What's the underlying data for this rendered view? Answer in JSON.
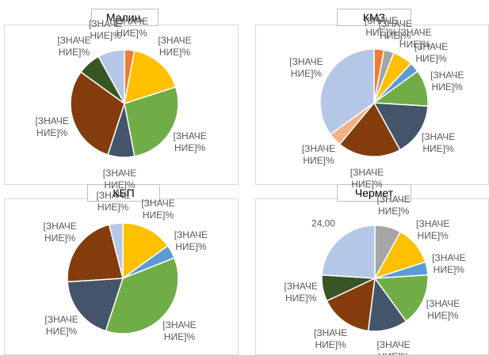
{
  "chart_data": [
    {
      "type": "pie",
      "title": "Малин.",
      "categories": [
        null,
        null,
        null,
        null,
        null,
        null,
        null
      ],
      "values": [
        3,
        17,
        27,
        8,
        30,
        7,
        8
      ],
      "colors": [
        "#ED7D31",
        "#FFC000",
        "#70AD47",
        "#44546A",
        "#843C0C",
        "#375623",
        "#B4C7E7"
      ],
      "value_labels": [
        "[ЗНАЧЕНИЕ]%",
        "[ЗНАЧЕНИЕ]%",
        "[ЗНАЧЕНИЕ]%",
        "[ЗНАЧЕНИЕ]%",
        "[ЗНАЧЕНИЕ]%",
        "[ЗНАЧЕНИЕ]%",
        "[ЗНАЧЕНИЕ]%"
      ]
    },
    {
      "type": "pie",
      "title": "КМЗ",
      "categories": [
        null,
        null,
        null,
        null,
        null,
        null,
        null,
        null,
        null
      ],
      "values": [
        3,
        3,
        6,
        3,
        11,
        16,
        19,
        4,
        35
      ],
      "colors": [
        "#ED7D31",
        "#A5A5A5",
        "#FFC000",
        "#5B9BD5",
        "#70AD47",
        "#44546A",
        "#843C0C",
        "#F4B183",
        "#B4C7E7"
      ],
      "value_labels": [
        "[ЗНАЧЕНИЕ]%",
        "[ЗНАЧЕНИЕ]%",
        "[ЗНАЧЕНИЕ]%",
        "[ЗНАЧЕНИЕ]%",
        "[ЗНАЧЕНИЕ]%",
        "[ЗНАЧЕНИЕ]%",
        "[ЗНАЧЕНИЕ]%",
        "[ЗНАЧЕНИЕ]%",
        "[ЗНАЧЕНИЕ]%"
      ]
    },
    {
      "type": "pie",
      "title": "КБП",
      "categories": [
        null,
        null,
        null,
        null,
        null,
        null
      ],
      "values": [
        15,
        4,
        36,
        19,
        22,
        4
      ],
      "colors": [
        "#FFC000",
        "#5B9BD5",
        "#70AD47",
        "#44546A",
        "#843C0C",
        "#B4C7E7"
      ],
      "value_labels": [
        "[ЗНАЧЕНИЕ]%",
        "[ЗНАЧЕНИЕ]%",
        "[ЗНАЧЕНИЕ]%",
        "[ЗНАЧЕНИЕ]%",
        "[ЗНАЧЕНИЕ]%",
        "[ЗНАЧЕНИЕ]%"
      ]
    },
    {
      "type": "pie",
      "title": "Чермет",
      "categories": [
        null,
        null,
        null,
        null,
        null,
        null,
        null,
        null
      ],
      "values": [
        8,
        12,
        4,
        16,
        12,
        16,
        8,
        24
      ],
      "colors": [
        "#A5A5A5",
        "#FFC000",
        "#5B9BD5",
        "#70AD47",
        "#44546A",
        "#843C0C",
        "#375623",
        "#B4C7E7"
      ],
      "value_labels": [
        "[ЗНАЧЕНИЕ]%",
        "[ЗНАЧЕНИЕ]%",
        "[ЗНАЧЕНИЕ]%",
        "[ЗНАЧЕНИЕ]%",
        "[ЗНАЧЕНИЕ]%",
        "[ЗНАЧЕНИЕ]%",
        "[ЗНАЧЕНИЕ]%",
        "24,00"
      ]
    }
  ]
}
